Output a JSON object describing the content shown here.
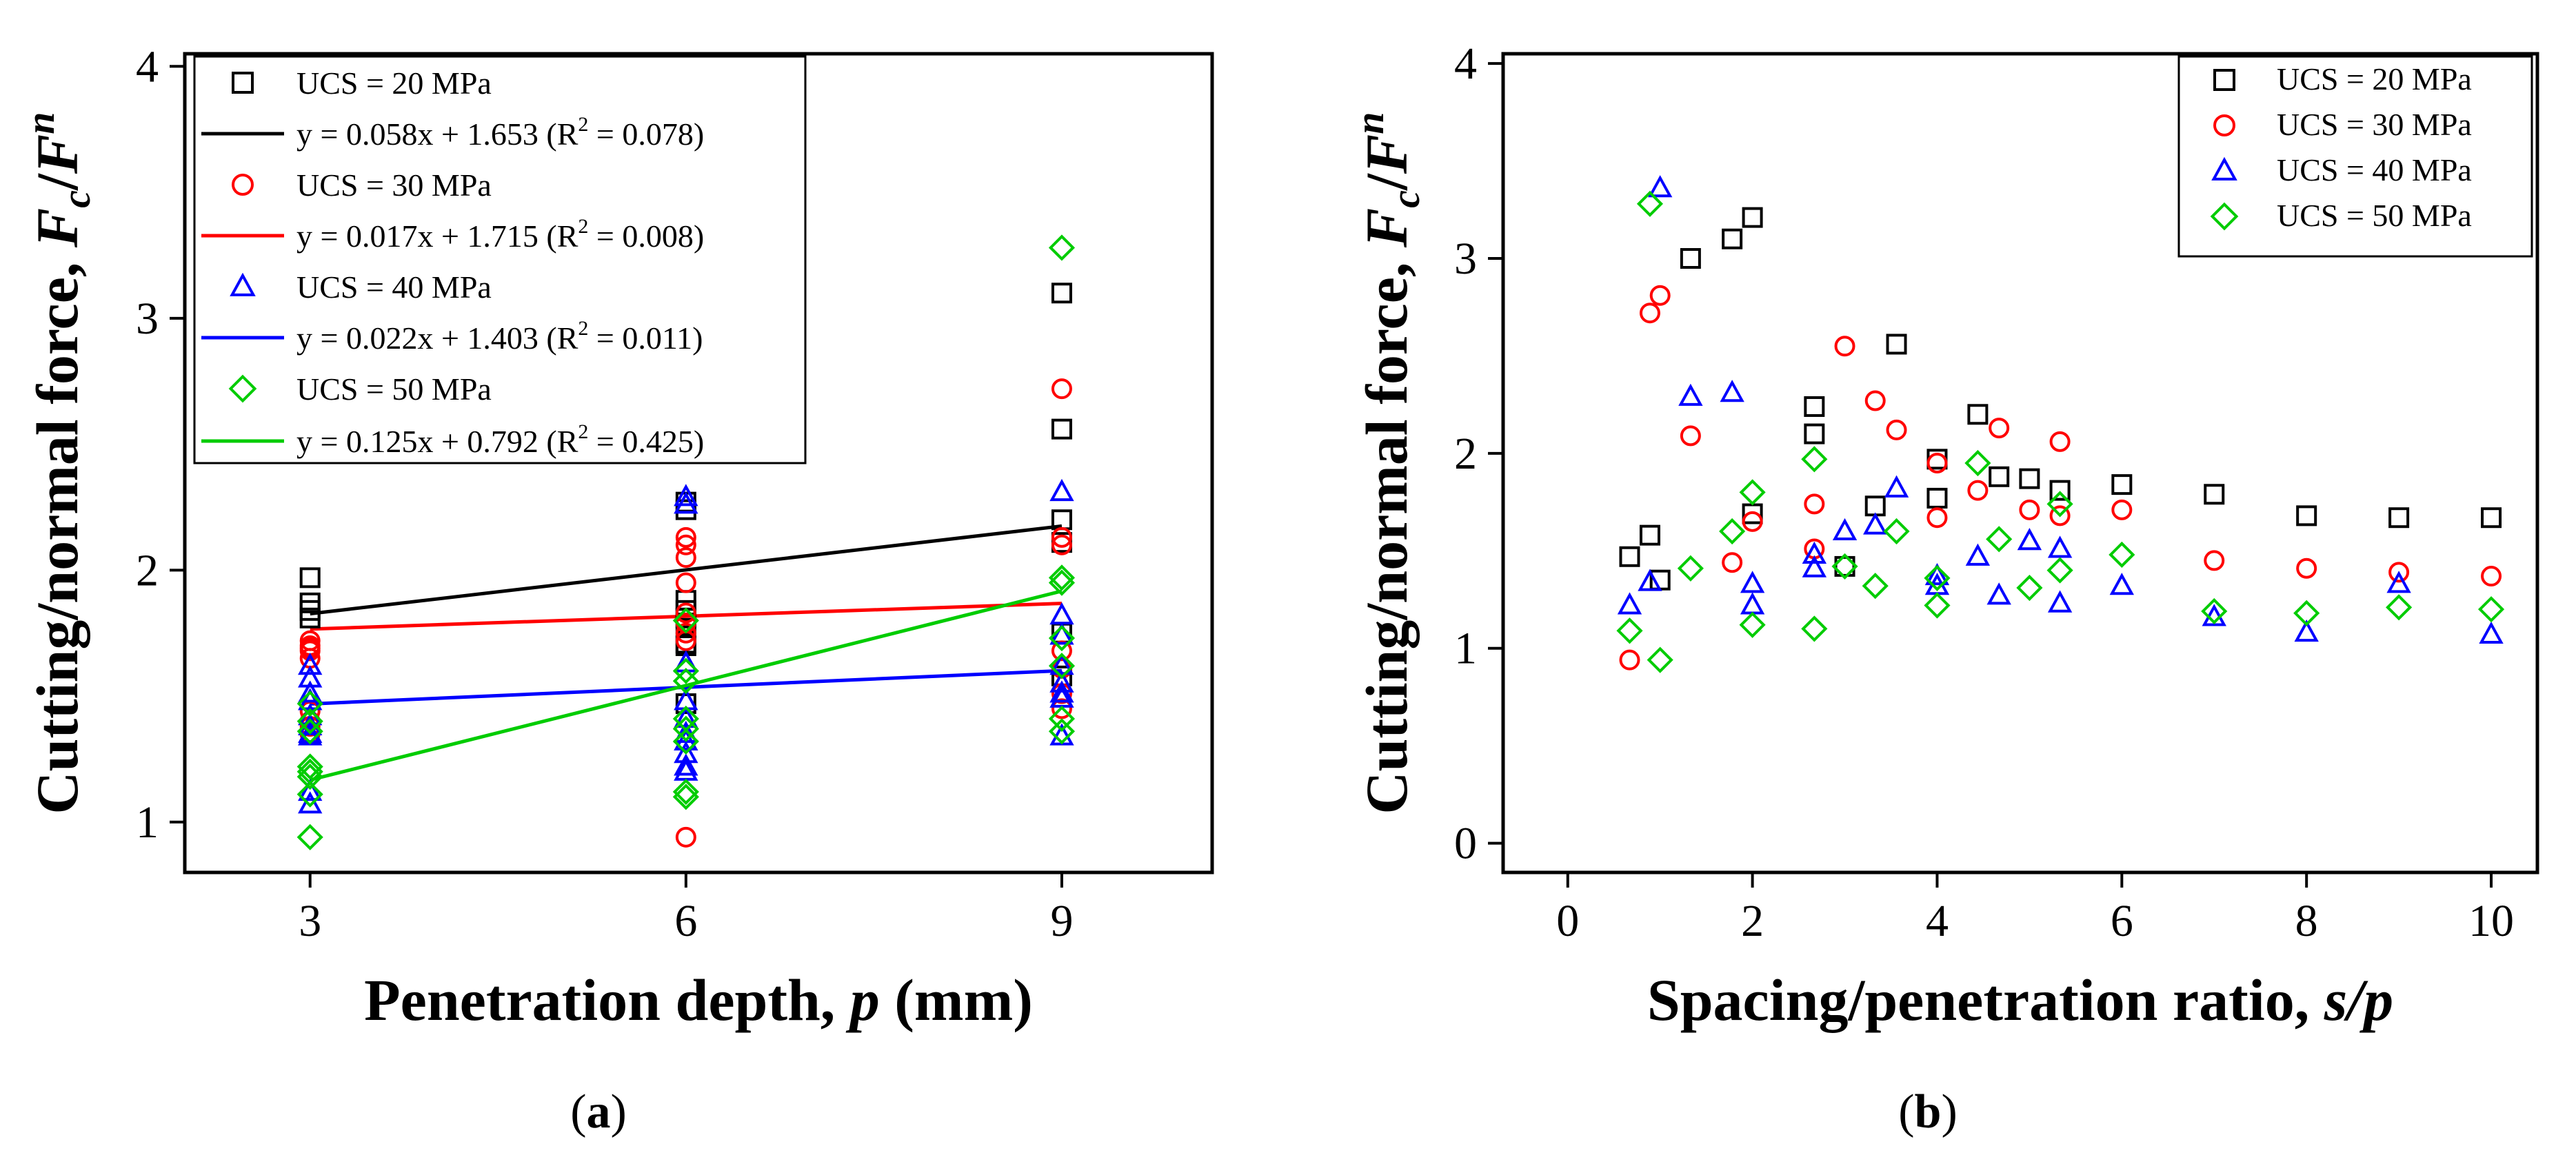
{
  "chart_data": [
    {
      "type": "scatter",
      "panel_label_open": "(",
      "panel_letter": "a",
      "panel_label_close": ")",
      "xlabel": "Penetration depth, ",
      "xlabel_var": "p",
      "xlabel_unit": " (mm)",
      "ylabel": "Cutting/normal force, ",
      "ylabel_num": "F",
      "ylabel_num_sub": "c",
      "ylabel_slash": "/",
      "ylabel_den": "F",
      "ylabel_den_sub": "n",
      "xlim": [
        2,
        10.2
      ],
      "ylim": [
        0.8,
        4.05
      ],
      "xticks": [
        "3",
        "6",
        "9"
      ],
      "yticks": [
        "1",
        "2",
        "3",
        "4"
      ],
      "series": [
        {
          "name": "UCS = 20 MPa",
          "marker": "square",
          "color": "#000000",
          "points": [
            [
              3,
              1.97
            ],
            [
              3,
              1.87
            ],
            [
              3,
              1.84
            ],
            [
              3,
              1.81
            ],
            [
              6,
              2.27
            ],
            [
              6,
              2.24
            ],
            [
              6,
              1.88
            ],
            [
              6,
              1.84
            ],
            [
              6,
              1.81
            ],
            [
              6,
              1.79
            ],
            [
              6,
              1.71
            ],
            [
              6,
              1.7
            ],
            [
              6,
              1.47
            ],
            [
              9,
              3.1
            ],
            [
              9,
              2.56
            ],
            [
              9,
              2.2
            ],
            [
              9,
              2.11
            ],
            [
              9,
              1.75
            ],
            [
              9,
              1.58
            ]
          ],
          "fit": {
            "label_eq": "y = 0.058x + 1.653 (R",
            "label_sup": "2",
            "label_end": " = 0.078)",
            "x": [
              3,
              9
            ],
            "y": [
              1.827,
              2.175
            ]
          }
        },
        {
          "name": "UCS = 30 MPa",
          "marker": "circle",
          "color": "#ff0000",
          "points": [
            [
              3,
              1.72
            ],
            [
              3,
              1.7
            ],
            [
              3,
              1.69
            ],
            [
              3,
              1.68
            ],
            [
              3,
              1.65
            ],
            [
              3,
              1.44
            ],
            [
              3,
              1.4
            ],
            [
              3,
              1.38
            ],
            [
              3,
              1.35
            ],
            [
              6,
              2.13
            ],
            [
              6,
              2.1
            ],
            [
              6,
              2.05
            ],
            [
              6,
              1.95
            ],
            [
              6,
              1.83
            ],
            [
              6,
              1.79
            ],
            [
              6,
              1.75
            ],
            [
              6,
              1.72
            ],
            [
              6,
              0.94
            ],
            [
              9,
              2.72
            ],
            [
              9,
              2.13
            ],
            [
              9,
              2.1
            ],
            [
              9,
              1.68
            ],
            [
              9,
              1.61
            ],
            [
              9,
              1.51
            ],
            [
              9,
              1.45
            ]
          ],
          "fit": {
            "label_eq": "y = 0.017x + 1.715 (R",
            "label_sup": "2",
            "label_end": " = 0.008)",
            "x": [
              3,
              9
            ],
            "y": [
              1.766,
              1.868
            ]
          }
        },
        {
          "name": "UCS = 40 MPa",
          "marker": "triangle",
          "color": "#0000ff",
          "points": [
            [
              3,
              1.62
            ],
            [
              3,
              1.57
            ],
            [
              3,
              1.51
            ],
            [
              3,
              1.48
            ],
            [
              3,
              1.42
            ],
            [
              3,
              1.38
            ],
            [
              3,
              1.35
            ],
            [
              3,
              1.34
            ],
            [
              3,
              1.12
            ],
            [
              3,
              1.07
            ],
            [
              6,
              2.29
            ],
            [
              6,
              2.26
            ],
            [
              6,
              1.63
            ],
            [
              6,
              1.48
            ],
            [
              6,
              1.41
            ],
            [
              6,
              1.35
            ],
            [
              6,
              1.32
            ],
            [
              6,
              1.27
            ],
            [
              6,
              1.22
            ],
            [
              6,
              1.2
            ],
            [
              9,
              2.31
            ],
            [
              9,
              1.82
            ],
            [
              9,
              1.74
            ],
            [
              9,
              1.62
            ],
            [
              9,
              1.55
            ],
            [
              9,
              1.51
            ],
            [
              9,
              1.49
            ],
            [
              9,
              1.34
            ]
          ],
          "fit": {
            "label_eq": "y = 0.022x + 1.403 (R",
            "label_sup": "2",
            "label_end": " = 0.011)",
            "x": [
              3,
              9
            ],
            "y": [
              1.469,
              1.601
            ]
          }
        },
        {
          "name": "UCS = 50 MPa",
          "marker": "diamond",
          "color": "#00cc00",
          "points": [
            [
              3,
              1.47
            ],
            [
              3,
              1.4
            ],
            [
              3,
              1.36
            ],
            [
              3,
              1.22
            ],
            [
              3,
              1.2
            ],
            [
              3,
              1.18
            ],
            [
              3,
              1.11
            ],
            [
              3,
              0.94
            ],
            [
              6,
              1.8
            ],
            [
              6,
              1.6
            ],
            [
              6,
              1.56
            ],
            [
              6,
              1.41
            ],
            [
              6,
              1.37
            ],
            [
              6,
              1.32
            ],
            [
              6,
              1.12
            ],
            [
              6,
              1.1
            ],
            [
              9,
              3.28
            ],
            [
              9,
              1.97
            ],
            [
              9,
              1.95
            ],
            [
              9,
              1.73
            ],
            [
              9,
              1.62
            ],
            [
              9,
              1.41
            ],
            [
              9,
              1.36
            ]
          ],
          "fit": {
            "label_eq": "y = 0.125x + 0.792 (R",
            "label_sup": "2",
            "label_end": " = 0.425)",
            "x": [
              3,
              9
            ],
            "y": [
              1.167,
              1.917
            ]
          }
        }
      ]
    },
    {
      "type": "scatter",
      "panel_label_open": "(",
      "panel_letter": "b",
      "panel_label_close": ")",
      "xlabel": "Spacing/penetration ratio, ",
      "xlabel_var": "s/p",
      "ylabel": "Cutting/normal force, ",
      "ylabel_num": "F",
      "ylabel_num_sub": "c",
      "ylabel_slash": "/",
      "ylabel_den": "F",
      "ylabel_den_sub": "n",
      "xlim": [
        -0.7,
        10.5
      ],
      "ylim": [
        -0.15,
        4.05
      ],
      "xticks": [
        "0",
        "2",
        "4",
        "6",
        "8",
        "10"
      ],
      "yticks": [
        "0",
        "1",
        "2",
        "3",
        "4"
      ],
      "series": [
        {
          "name": "UCS = 20 MPa",
          "marker": "square",
          "color": "#000000",
          "points": [
            [
              0.67,
              1.47
            ],
            [
              0.89,
              1.58
            ],
            [
              1.0,
              1.35
            ],
            [
              1.33,
              3.0
            ],
            [
              1.78,
              3.1
            ],
            [
              2.0,
              3.21
            ],
            [
              2.0,
              1.69
            ],
            [
              2.67,
              2.24
            ],
            [
              2.67,
              2.1
            ],
            [
              3.0,
              1.42
            ],
            [
              3.33,
              1.73
            ],
            [
              3.56,
              2.56
            ],
            [
              4.0,
              1.97
            ],
            [
              4.0,
              1.77
            ],
            [
              4.44,
              2.2
            ],
            [
              4.67,
              1.88
            ],
            [
              5.0,
              1.87
            ],
            [
              5.33,
              1.81
            ],
            [
              6.0,
              1.84
            ],
            [
              7.0,
              1.79
            ],
            [
              8.0,
              1.68
            ],
            [
              9.0,
              1.67
            ],
            [
              10.0,
              1.67
            ]
          ]
        },
        {
          "name": "UCS = 30 MPa",
          "marker": "circle",
          "color": "#ff0000",
          "points": [
            [
              0.67,
              0.94
            ],
            [
              0.89,
              2.72
            ],
            [
              1.0,
              2.81
            ],
            [
              1.33,
              2.09
            ],
            [
              1.78,
              1.44
            ],
            [
              2.0,
              1.65
            ],
            [
              2.67,
              1.74
            ],
            [
              2.67,
              1.51
            ],
            [
              3.0,
              2.55
            ],
            [
              3.33,
              2.27
            ],
            [
              3.56,
              2.12
            ],
            [
              4.0,
              1.95
            ],
            [
              4.0,
              1.67
            ],
            [
              4.44,
              1.81
            ],
            [
              4.67,
              2.13
            ],
            [
              5.0,
              1.71
            ],
            [
              5.33,
              2.06
            ],
            [
              5.33,
              1.68
            ],
            [
              6.0,
              1.71
            ],
            [
              7.0,
              1.45
            ],
            [
              8.0,
              1.41
            ],
            [
              9.0,
              1.39
            ],
            [
              10.0,
              1.37
            ]
          ]
        },
        {
          "name": "UCS = 40 MPa",
          "marker": "triangle",
          "color": "#0000ff",
          "points": [
            [
              0.67,
              1.22
            ],
            [
              0.89,
              1.34
            ],
            [
              1.0,
              3.36
            ],
            [
              1.33,
              2.29
            ],
            [
              1.78,
              2.31
            ],
            [
              2.0,
              1.33
            ],
            [
              2.0,
              1.22
            ],
            [
              2.67,
              1.48
            ],
            [
              2.67,
              1.41
            ],
            [
              3.0,
              1.6
            ],
            [
              3.33,
              1.63
            ],
            [
              3.56,
              1.82
            ],
            [
              4.0,
              1.37
            ],
            [
              4.0,
              1.32
            ],
            [
              4.44,
              1.47
            ],
            [
              4.67,
              1.27
            ],
            [
              5.0,
              1.55
            ],
            [
              5.33,
              1.51
            ],
            [
              5.33,
              1.23
            ],
            [
              6.0,
              1.32
            ],
            [
              7.0,
              1.16
            ],
            [
              8.0,
              1.08
            ],
            [
              9.0,
              1.33
            ],
            [
              10.0,
              1.07
            ]
          ]
        },
        {
          "name": "UCS = 50 MPa",
          "marker": "diamond",
          "color": "#00cc00",
          "points": [
            [
              0.67,
              1.09
            ],
            [
              0.89,
              3.28
            ],
            [
              1.0,
              0.94
            ],
            [
              1.33,
              1.41
            ],
            [
              1.78,
              1.6
            ],
            [
              2.0,
              1.8
            ],
            [
              2.0,
              1.12
            ],
            [
              2.67,
              1.97
            ],
            [
              2.67,
              1.1
            ],
            [
              3.0,
              1.42
            ],
            [
              3.33,
              1.32
            ],
            [
              3.56,
              1.6
            ],
            [
              4.0,
              1.36
            ],
            [
              4.0,
              1.22
            ],
            [
              4.44,
              1.95
            ],
            [
              4.67,
              1.56
            ],
            [
              5.0,
              1.31
            ],
            [
              5.33,
              1.74
            ],
            [
              5.33,
              1.4
            ],
            [
              6.0,
              1.48
            ],
            [
              7.0,
              1.19
            ],
            [
              8.0,
              1.18
            ],
            [
              9.0,
              1.21
            ],
            [
              10.0,
              1.2
            ]
          ]
        }
      ]
    }
  ]
}
